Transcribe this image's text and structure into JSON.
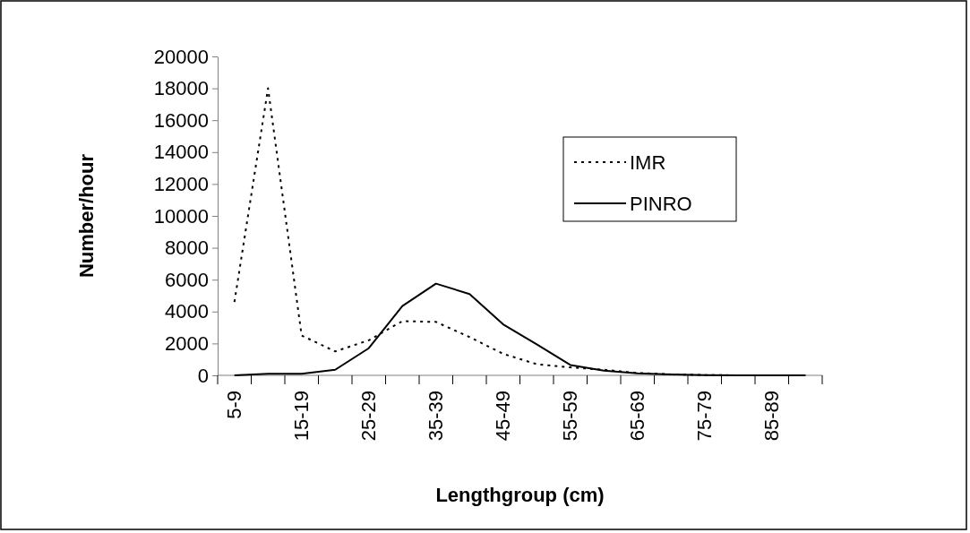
{
  "chart_data": {
    "type": "line",
    "xlabel": "Lengthgroup (cm)",
    "ylabel": "Number/hour",
    "categories": [
      "5-9",
      null,
      "15-19",
      null,
      "25-29",
      null,
      "35-39",
      null,
      "45-49",
      null,
      "55-59",
      null,
      "65-69",
      null,
      "75-79",
      null,
      "85-89",
      null
    ],
    "series": [
      {
        "name": "IMR",
        "color": "#000000",
        "line_style": "dotted",
        "values": [
          4600,
          18000,
          2500,
          1500,
          2200,
          3400,
          3350,
          2400,
          1350,
          700,
          500,
          350,
          150,
          60,
          20,
          0,
          0,
          0
        ]
      },
      {
        "name": "PINRO",
        "color": "#000000",
        "line_style": "solid",
        "values": [
          0,
          100,
          100,
          350,
          1700,
          4350,
          5750,
          5100,
          3200,
          1950,
          650,
          300,
          120,
          60,
          20,
          0,
          0,
          0
        ]
      }
    ],
    "ylim": [
      0,
      20000
    ],
    "yticks": [
      0,
      2000,
      4000,
      6000,
      8000,
      10000,
      12000,
      14000,
      16000,
      18000,
      20000
    ],
    "grid": false,
    "legend": "top right",
    "marker": "none"
  }
}
